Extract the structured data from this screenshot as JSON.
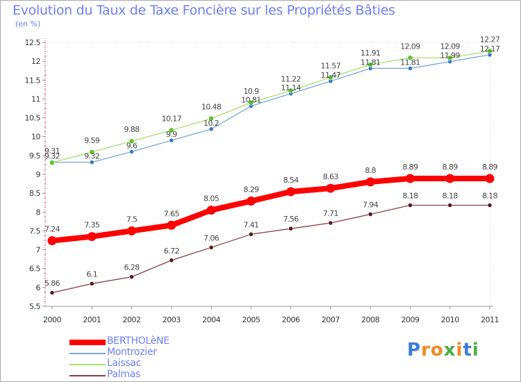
{
  "header": {
    "title": "Evolution du Taux de Taxe Foncière sur les Propriétés Bâties",
    "subtitle": "(en %)"
  },
  "brand": {
    "letters": [
      "P",
      "r",
      "o",
      "x",
      "i",
      "t",
      "i"
    ],
    "colors": [
      "#3b7dd8",
      "#f08a24",
      "#f08a24",
      "#4ab04a",
      "#f08a24",
      "#3b7dd8",
      "#4ab04a"
    ]
  },
  "chart_data": {
    "type": "line",
    "title": "Evolution du Taux de Taxe Foncière sur les Propriétés Bâties",
    "ylabel": "(en %)",
    "xlabel": "",
    "x": [
      "2000",
      "2001",
      "2002",
      "2003",
      "2004",
      "2005",
      "2006",
      "2007",
      "2008",
      "2009",
      "2010",
      "2011"
    ],
    "ylim": [
      5.5,
      12.5
    ],
    "yticks": [
      "5.5",
      "6",
      "6.5",
      "7",
      "7.5",
      "8",
      "8.5",
      "9",
      "9.5",
      "10",
      "10.5",
      "11",
      "11.5",
      "12",
      "12.5"
    ],
    "grid": false,
    "legend_position": "bottom-left",
    "series": [
      {
        "name": "BERTHOLèNE",
        "color": "#ff0000",
        "marker_color": "#ff0000",
        "values": [
          7.24,
          7.35,
          7.5,
          7.65,
          8.05,
          8.29,
          8.54,
          8.63,
          8.8,
          8.89,
          8.89,
          8.89
        ],
        "labels": [
          "7.24",
          "7.35",
          "7.5",
          "7.65",
          "8.05",
          "8.29",
          "8.54",
          "8.63",
          "8.8",
          "8.89",
          "8.89",
          "8.89"
        ]
      },
      {
        "name": "Montrozier",
        "color": "#7aa6d6",
        "marker_color": "#3a78c4",
        "values": [
          9.32,
          9.32,
          9.6,
          9.9,
          10.2,
          10.81,
          11.14,
          11.47,
          11.81,
          11.81,
          11.99,
          12.17
        ],
        "labels": [
          "9.32",
          "9.32",
          "9.6",
          "9.9",
          "10.2",
          "10.81",
          "11.14",
          "11.47",
          "11.81",
          "11.81",
          "11.99",
          "12.17"
        ]
      },
      {
        "name": "Laissac",
        "color": "#a6e06a",
        "marker_color": "#5ec232",
        "values": [
          9.31,
          9.59,
          9.88,
          10.17,
          10.48,
          10.9,
          11.22,
          11.57,
          11.91,
          12.09,
          12.09,
          12.27
        ],
        "labels": [
          "9.31",
          "9.59",
          "9.88",
          "10.17",
          "10.48",
          "10.9",
          "11.22",
          "11.57",
          "11.91",
          "12.09",
          "12.09",
          "12.27"
        ]
      },
      {
        "name": "Palmas",
        "color": "#8c3c3c",
        "marker_color": "#5a1a1a",
        "values": [
          5.86,
          6.1,
          6.28,
          6.72,
          7.06,
          7.41,
          7.56,
          7.71,
          7.94,
          8.18,
          8.18,
          8.18
        ],
        "labels": [
          "5.86",
          "6.1",
          "6.28",
          "6.72",
          "7.06",
          "7.41",
          "7.56",
          "7.71",
          "7.94",
          "8.18",
          "8.18",
          "8.18"
        ]
      }
    ]
  }
}
